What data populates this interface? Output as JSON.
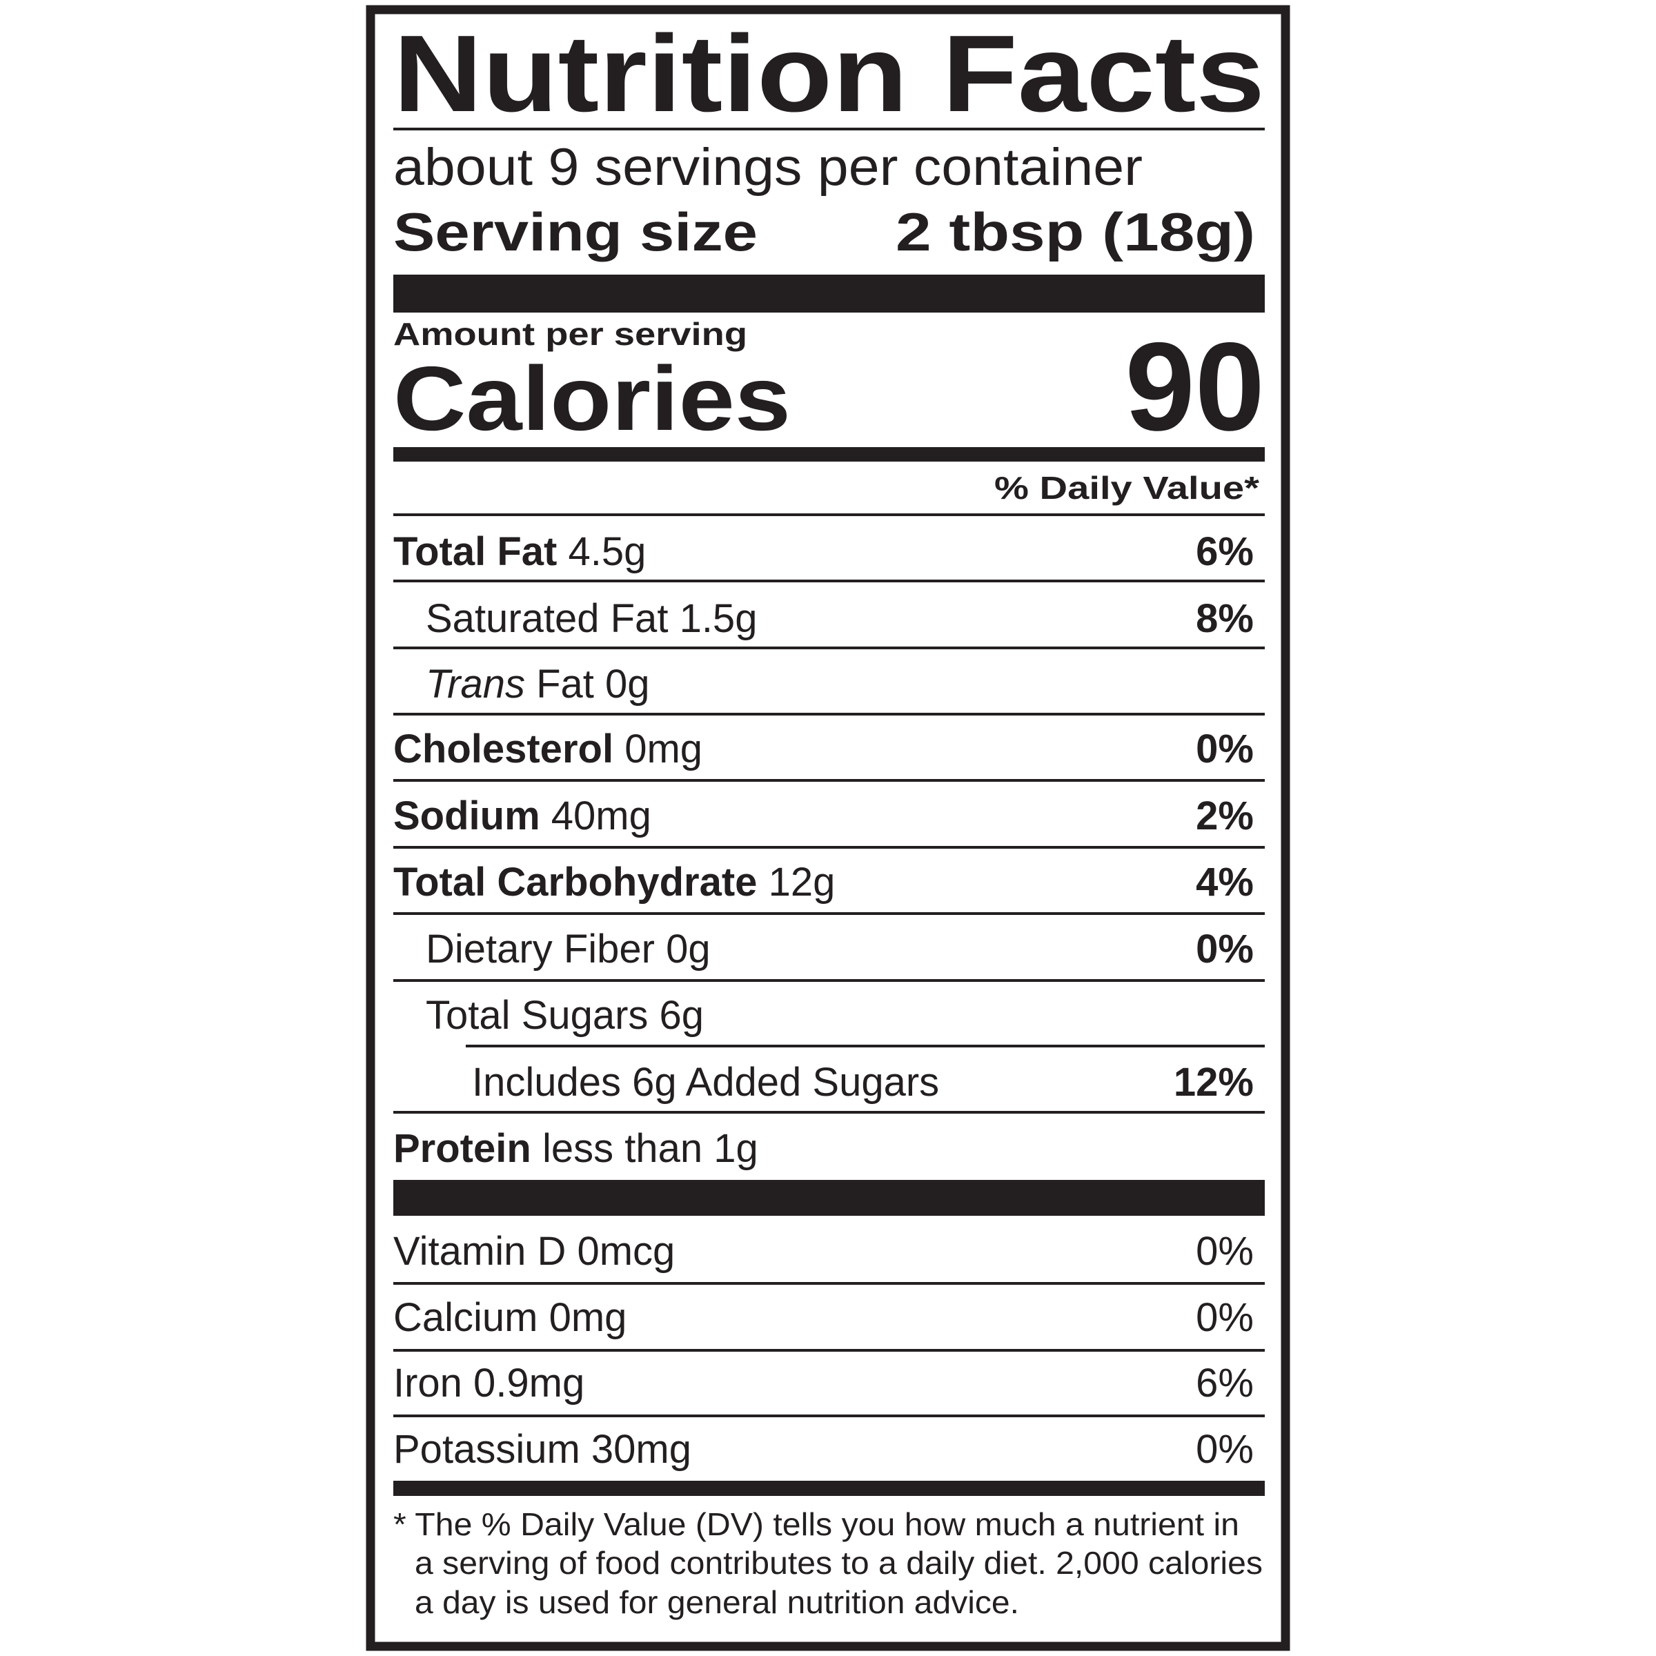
{
  "title": "Nutrition Facts",
  "servings_per_container": "about 9 servings per container",
  "serving_size": {
    "label": "Serving size",
    "value": "2 tbsp (18g)"
  },
  "amount_per_serving": "Amount per serving",
  "calories": {
    "label": "Calories",
    "value": "90"
  },
  "daily_value_header": "% Daily Value*",
  "nutrients": [
    {
      "label": "Total Fat",
      "amount": "4.5g",
      "dv": "6%"
    },
    {
      "label": "Saturated Fat",
      "amount": "1.5g",
      "dv": "8%"
    },
    {
      "label": "Trans",
      "label_rest": "Fat",
      "amount": "0g"
    },
    {
      "label": "Cholesterol",
      "amount": "0mg",
      "dv": "0%"
    },
    {
      "label": "Sodium",
      "amount": "40mg",
      "dv": "2%"
    },
    {
      "label": "Total Carbohydrate",
      "amount": "12g",
      "dv": "4%"
    },
    {
      "label": "Dietary Fiber",
      "amount": "0g",
      "dv": "0%"
    },
    {
      "label": "Total Sugars",
      "amount": "6g"
    },
    {
      "label": "Includes 6g Added Sugars",
      "dv": "12%"
    },
    {
      "label": "Protein",
      "amount": "less than 1g"
    }
  ],
  "vitamins": [
    {
      "label": "Vitamin D 0mcg",
      "dv": "0%"
    },
    {
      "label": "Calcium 0mg",
      "dv": "0%"
    },
    {
      "label": "Iron 0.9mg",
      "dv": "6%"
    },
    {
      "label": "Potassium 30mg",
      "dv": "0%"
    }
  ],
  "footnote": [
    "* The % Daily Value (DV) tells you how much a nutrient in",
    "a serving of food contributes to a daily diet. 2,000 calories",
    "a day is used for general nutrition advice."
  ],
  "colors": {
    "ink": "#231f20",
    "background": "#ffffff"
  }
}
